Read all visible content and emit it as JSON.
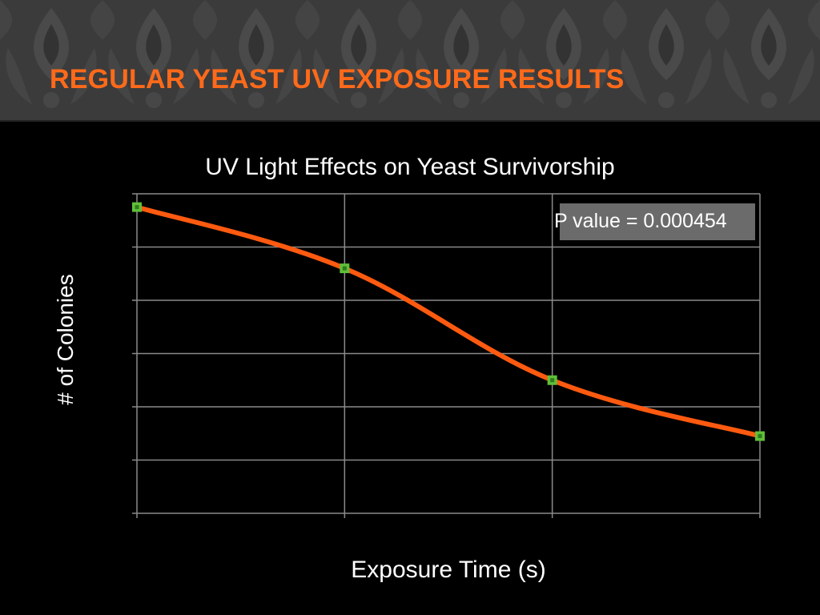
{
  "slide": {
    "title": "REGULAR YEAST UV EXPOSURE RESULTS",
    "title_color": "#ff6a1a"
  },
  "annotation": {
    "pvalue_text": "P value = 0.000454"
  },
  "chart_data": {
    "type": "line",
    "title": "UV Light Effects on Yeast Survivorship",
    "xlabel": "Exposure Time (s)",
    "ylabel": "# of Colonies",
    "categories": [
      "",
      "",
      "",
      ""
    ],
    "series": [
      {
        "values": [
          5.75,
          4.6,
          2.5,
          1.45
        ],
        "line_color": "#ff5a10",
        "marker_color": "#5fbf3a"
      }
    ],
    "ylim": [
      0,
      6
    ],
    "grid": true,
    "tick_labels_shown": false
  }
}
